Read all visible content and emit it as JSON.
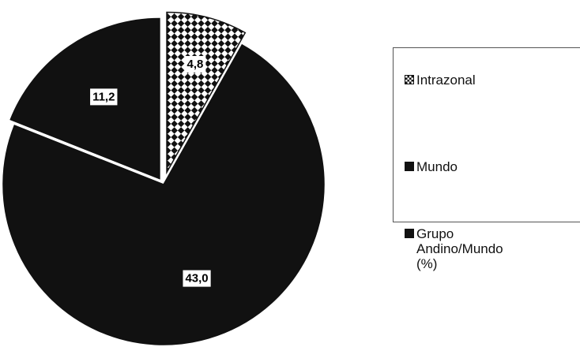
{
  "chart_data": {
    "type": "pie",
    "categories": [
      "Intrazonal",
      "Mundo",
      "Grupo Andino/Mundo (%)"
    ],
    "values": [
      4.8,
      43.0,
      11.2
    ],
    "value_labels": [
      "4,8",
      "43,0",
      "11,2"
    ],
    "colors": [
      "#111111",
      "#111111",
      "#111111"
    ],
    "fills": [
      "checkered",
      "solid",
      "solid"
    ],
    "legend": "right"
  }
}
